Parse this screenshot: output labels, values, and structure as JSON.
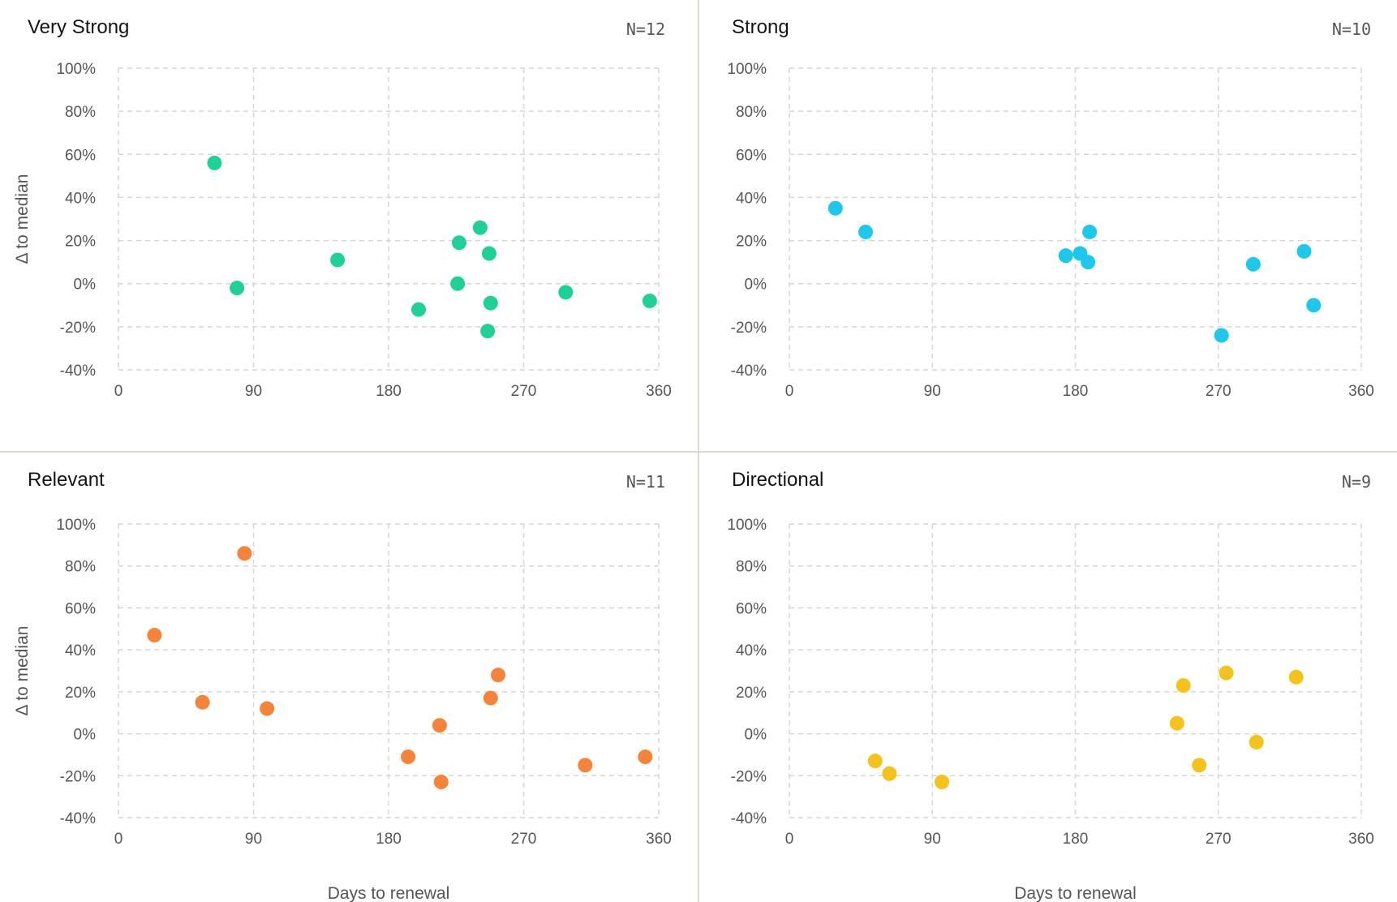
{
  "x_axis_label": "Days to renewal",
  "y_axis_label": "Δ to median",
  "chart_data": [
    {
      "type": "scatter",
      "title": "Very Strong",
      "count_label": "N=12",
      "color": "#1fd196",
      "xlim": [
        0,
        360
      ],
      "ylim": [
        -40,
        100
      ],
      "xticks": [
        "0",
        "90",
        "180",
        "270",
        "360"
      ],
      "yticks": [
        "100%",
        "80%",
        "60%",
        "40%",
        "20%",
        "0%",
        "-20%",
        "-40%"
      ],
      "xlabel": "",
      "ylabel": "Δ to median",
      "points": [
        {
          "x": 64,
          "y": 56
        },
        {
          "x": 79,
          "y": -2
        },
        {
          "x": 146,
          "y": 11
        },
        {
          "x": 200,
          "y": -12
        },
        {
          "x": 226,
          "y": 0
        },
        {
          "x": 227,
          "y": 19
        },
        {
          "x": 241,
          "y": 26
        },
        {
          "x": 246,
          "y": -22
        },
        {
          "x": 247,
          "y": 14
        },
        {
          "x": 248,
          "y": -9
        },
        {
          "x": 298,
          "y": -4
        },
        {
          "x": 354,
          "y": -8
        }
      ]
    },
    {
      "type": "scatter",
      "title": "Strong",
      "count_label": "N=10",
      "color": "#1ec8eb",
      "xlim": [
        0,
        360
      ],
      "ylim": [
        -40,
        100
      ],
      "xticks": [
        "0",
        "90",
        "180",
        "270",
        "360"
      ],
      "yticks": [
        "100%",
        "80%",
        "60%",
        "40%",
        "20%",
        "0%",
        "-20%",
        "-40%"
      ],
      "xlabel": "",
      "ylabel": "",
      "points": [
        {
          "x": 29,
          "y": 35
        },
        {
          "x": 48,
          "y": 24
        },
        {
          "x": 174,
          "y": 13
        },
        {
          "x": 183,
          "y": 14
        },
        {
          "x": 188,
          "y": 10
        },
        {
          "x": 189,
          "y": 24
        },
        {
          "x": 272,
          "y": -24
        },
        {
          "x": 292,
          "y": 9
        },
        {
          "x": 324,
          "y": 15
        },
        {
          "x": 330,
          "y": -10
        }
      ]
    },
    {
      "type": "scatter",
      "title": "Relevant",
      "count_label": "N=11",
      "color": "#f5843a",
      "xlim": [
        0,
        360
      ],
      "ylim": [
        -40,
        100
      ],
      "xticks": [
        "0",
        "90",
        "180",
        "270",
        "360"
      ],
      "yticks": [
        "100%",
        "80%",
        "60%",
        "40%",
        "20%",
        "0%",
        "-20%",
        "-40%"
      ],
      "xlabel": "Days to renewal",
      "ylabel": "Δ to median",
      "points": [
        {
          "x": 24,
          "y": 47
        },
        {
          "x": 56,
          "y": 15
        },
        {
          "x": 84,
          "y": 86
        },
        {
          "x": 99,
          "y": 12
        },
        {
          "x": 193,
          "y": -11
        },
        {
          "x": 214,
          "y": 4
        },
        {
          "x": 215,
          "y": -23
        },
        {
          "x": 248,
          "y": 17
        },
        {
          "x": 253,
          "y": 28
        },
        {
          "x": 311,
          "y": -15
        },
        {
          "x": 351,
          "y": -11
        }
      ]
    },
    {
      "type": "scatter",
      "title": "Directional",
      "count_label": "N=9",
      "color": "#f5c21b",
      "xlim": [
        0,
        360
      ],
      "ylim": [
        -40,
        100
      ],
      "xticks": [
        "0",
        "90",
        "180",
        "270",
        "360"
      ],
      "yticks": [
        "100%",
        "80%",
        "60%",
        "40%",
        "20%",
        "0%",
        "-20%",
        "-40%"
      ],
      "xlabel": "Days to renewal",
      "ylabel": "",
      "points": [
        {
          "x": 54,
          "y": -13
        },
        {
          "x": 63,
          "y": -19
        },
        {
          "x": 96,
          "y": -23
        },
        {
          "x": 244,
          "y": 5
        },
        {
          "x": 248,
          "y": 23
        },
        {
          "x": 258,
          "y": -15
        },
        {
          "x": 275,
          "y": 29
        },
        {
          "x": 294,
          "y": -4
        },
        {
          "x": 319,
          "y": 27
        }
      ]
    }
  ]
}
